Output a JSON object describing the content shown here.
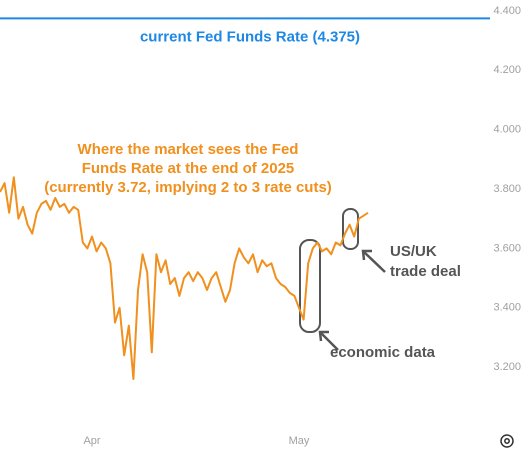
{
  "chart_data": {
    "type": "line",
    "categories": [
      null,
      null,
      null,
      null,
      null,
      null,
      null,
      null,
      null,
      null,
      null,
      null,
      null,
      null,
      null,
      null,
      null,
      null,
      null,
      null,
      "Apr",
      null,
      null,
      null,
      null,
      null,
      null,
      null,
      null,
      null,
      null,
      null,
      null,
      null,
      null,
      null,
      null,
      null,
      null,
      null,
      null,
      null,
      null,
      null,
      null,
      null,
      null,
      null,
      null,
      null,
      null,
      null,
      null,
      null,
      null,
      null,
      null,
      null,
      null,
      null,
      null,
      null,
      null,
      null,
      null,
      "May",
      null,
      null,
      null,
      null,
      null,
      null,
      null,
      null,
      null,
      null,
      null,
      null,
      null,
      null,
      null
    ],
    "values": [
      3.79,
      3.82,
      3.72,
      3.84,
      3.7,
      3.74,
      3.68,
      3.65,
      3.72,
      3.75,
      3.76,
      3.73,
      3.77,
      3.74,
      3.75,
      3.72,
      3.74,
      3.73,
      3.62,
      3.6,
      3.64,
      3.59,
      3.62,
      3.6,
      3.55,
      3.35,
      3.4,
      3.24,
      3.34,
      3.16,
      3.46,
      3.58,
      3.52,
      3.25,
      3.58,
      3.52,
      3.56,
      3.48,
      3.5,
      3.44,
      3.5,
      3.52,
      3.49,
      3.52,
      3.5,
      3.46,
      3.5,
      3.52,
      3.47,
      3.42,
      3.46,
      3.55,
      3.6,
      3.57,
      3.55,
      3.58,
      3.52,
      3.56,
      3.54,
      3.55,
      3.5,
      3.48,
      3.47,
      3.45,
      3.44,
      3.4,
      3.36,
      3.55,
      3.6,
      3.62,
      3.59,
      3.6,
      3.58,
      3.62,
      3.61,
      3.65,
      3.68,
      3.64,
      3.7,
      3.71,
      3.72
    ],
    "color": "#f0901e",
    "ylim": [
      3.005,
      4.437
    ],
    "yticks": [
      {
        "value": 3.2,
        "label": "3.200"
      },
      {
        "value": 3.4,
        "label": "3.400"
      },
      {
        "value": 3.6,
        "label": "3.600"
      },
      {
        "value": 3.8,
        "label": "3.800"
      },
      {
        "value": 4.0,
        "label": "4.000"
      },
      {
        "value": 4.2,
        "label": "4.200"
      },
      {
        "value": 4.4,
        "label": "4.400"
      }
    ],
    "reference_line": {
      "value": 4.375,
      "label": "current Fed Funds Rate (4.375)",
      "color": "#1e88e5"
    },
    "annotations": [
      "Where the market sees the Fed",
      "Funds Rate at the end of 2025",
      "(currently 3.72, implying 2 to 3 rate cuts)",
      "US/UK",
      "trade deal",
      "economic data"
    ]
  }
}
